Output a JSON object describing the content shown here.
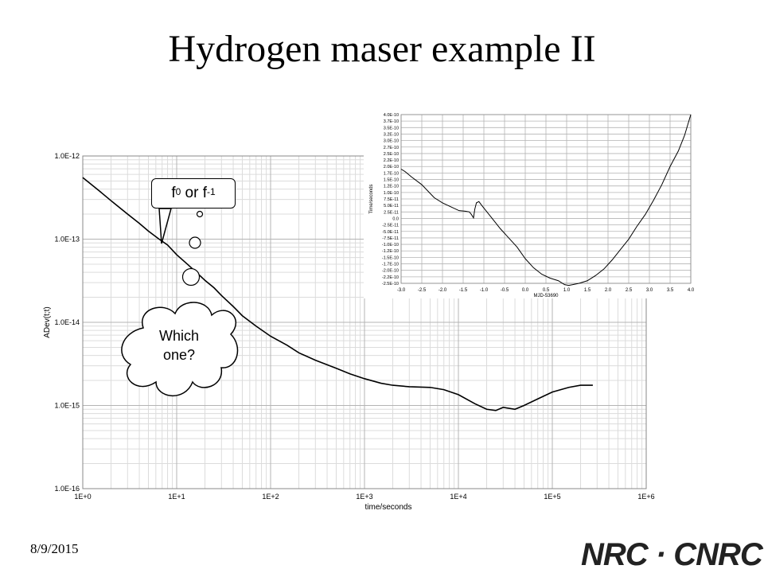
{
  "slide": {
    "title": "Hydrogen maser example II",
    "date": "8/9/2015",
    "logo": "NRC · CNRC"
  },
  "callout": {
    "base": "f",
    "exp1": "0",
    "middle": " or f",
    "exp2": "-1"
  },
  "cloud": {
    "line1": "Which",
    "line2": "one?"
  },
  "colors": {
    "line": "#000000",
    "grid_major": "#b4b4b4",
    "grid_minor": "#dcdcdc",
    "axis": "#888888"
  },
  "chart_data": [
    {
      "type": "line",
      "xscale": "log",
      "yscale": "log",
      "xlabel": "time/seconds",
      "ylabel": "ADev(t;t)",
      "xlim": [
        1,
        1000000
      ],
      "ylim": [
        1e-16,
        1e-12
      ],
      "xticklabels": [
        "1E+0",
        "1E+1",
        "1E+2",
        "1E+3",
        "1E+4",
        "1E+5",
        "1E+6"
      ],
      "yticklabels": [
        "1.0E-16",
        "1.0E-15",
        "1.0E-14",
        "1.0E-13",
        "1.0E-12"
      ],
      "grid": true,
      "series": [
        {
          "x": [
            1,
            1.5,
            2,
            3,
            4,
            5,
            6.5,
            8,
            10,
            13,
            17,
            20,
            25,
            30,
            40,
            50,
            70,
            100,
            150,
            200,
            300,
            500,
            700,
            1000,
            1500,
            2000,
            3000,
            5000,
            7000,
            10000,
            15000,
            20000,
            25000,
            30000,
            40000,
            50000,
            70000,
            100000,
            150000,
            200000,
            270000
          ],
          "y": [
            5.5e-13,
            3.8e-13,
            2.9e-13,
            2e-13,
            1.55e-13,
            1.25e-13,
            1e-13,
            8.5e-14,
            6.5e-14,
            5e-14,
            3.8e-14,
            3.2e-14,
            2.6e-14,
            2.1e-14,
            1.55e-14,
            1.2e-14,
            9e-15,
            6.8e-15,
            5.3e-15,
            4.3e-15,
            3.5e-15,
            2.8e-15,
            2.4e-15,
            2.1e-15,
            1.85e-15,
            1.75e-15,
            1.68e-15,
            1.65e-15,
            1.55e-15,
            1.35e-15,
            1.05e-15,
            9e-16,
            8.7e-16,
            9.5e-16,
            9e-16,
            1e-15,
            1.2e-15,
            1.45e-15,
            1.65e-15,
            1.75e-15,
            1.75e-15
          ]
        }
      ]
    },
    {
      "type": "line",
      "xlabel": "MJD-53690",
      "ylabel": "Time/seconds",
      "xlim": [
        -3.0,
        4.0
      ],
      "ylim": [
        -2.5e-10,
        4e-10
      ],
      "xticklabels": [
        "-3.0",
        "-2.5",
        "-2.0",
        "-1.5",
        "-1.0",
        "-0.5",
        "0.0",
        "0.5",
        "1.0",
        "1.5",
        "2.0",
        "2.5",
        "3.0",
        "3.5",
        "4.0"
      ],
      "yticklabels": [
        "4.0E-10",
        "3.7E-10",
        "3.5E-10",
        "3.2E-10",
        "3.0E-10",
        "2.7E-10",
        "2.5E-10",
        "2.2E-10",
        "2.0E-10",
        "1.7E-10",
        "1.5E-10",
        "1.2E-10",
        "1.0E-10",
        "7.5E-11",
        "5.0E-11",
        "2.5E-11",
        "0.0",
        "-2.5E-11",
        "-5.0E-11",
        "-7.5E-11",
        "-1.0E-10",
        "-1.2E-10",
        "-1.5E-10",
        "-1.7E-10",
        "-2.0E-10",
        "-2.2E-10",
        "-2.5E-10"
      ],
      "grid": true,
      "series": [
        {
          "x": [
            -3.0,
            -2.9,
            -2.75,
            -2.5,
            -2.2,
            -2.0,
            -1.8,
            -1.6,
            -1.45,
            -1.35,
            -1.3,
            -1.25,
            -1.22,
            -1.18,
            -1.12,
            -1.05,
            -0.95,
            -0.8,
            -0.6,
            -0.4,
            -0.2,
            0.0,
            0.2,
            0.4,
            0.6,
            0.8,
            0.95,
            1.05,
            1.15,
            1.3,
            1.5,
            1.7,
            1.9,
            2.1,
            2.3,
            2.5,
            2.7,
            2.9,
            3.1,
            3.3,
            3.5,
            3.7,
            3.85,
            4.0
          ],
          "y": [
            1.9e-10,
            1.8e-10,
            1.6e-10,
            1.3e-10,
            8e-11,
            6e-11,
            4.5e-11,
            3e-11,
            2.8e-11,
            2.5e-11,
            1.5e-11,
            2e-12,
            3.5e-11,
            6e-11,
            6.5e-11,
            5e-11,
            3e-11,
            0.0,
            -4e-11,
            -7.5e-11,
            -1.1e-10,
            -1.55e-10,
            -1.9e-10,
            -2.15e-10,
            -2.3e-10,
            -2.4e-10,
            -2.55e-10,
            -2.58e-10,
            -2.55e-10,
            -2.5e-10,
            -2.4e-10,
            -2.2e-10,
            -1.95e-10,
            -1.6e-10,
            -1.2e-10,
            -8e-11,
            -3e-11,
            1.5e-11,
            7e-11,
            1.3e-10,
            2e-10,
            2.6e-10,
            3.2e-10,
            4.1e-10
          ]
        }
      ]
    }
  ]
}
